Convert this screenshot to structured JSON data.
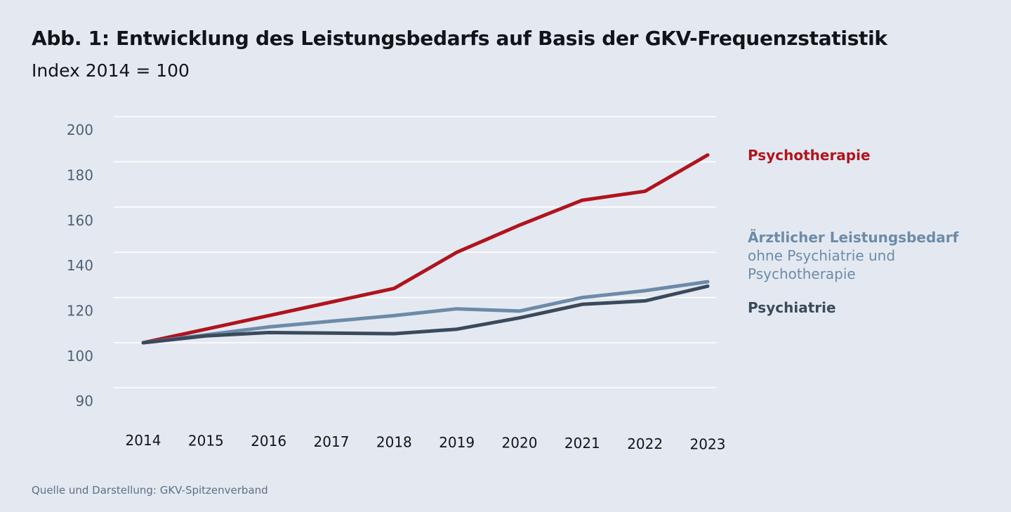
{
  "header": {
    "title": "Abb. 1: Entwicklung des Leistungsbedarfs auf Basis der GKV-Frequenzstatistik",
    "subtitle": "Index 2014 = 100"
  },
  "footer": {
    "source": "Quelle und Darstellung: GKV-Spitzenverband"
  },
  "chart_data": {
    "type": "line",
    "title": "Abb. 1: Entwicklung des Leistungsbedarfs auf Basis der GKV-Frequenzstatistik",
    "subtitle": "Index 2014 = 100",
    "xlabel": "",
    "ylabel": "",
    "x": [
      "2014",
      "2015",
      "2016",
      "2017",
      "2018",
      "2019",
      "2020",
      "2021",
      "2022",
      "2023"
    ],
    "yticks": [
      90,
      100,
      120,
      140,
      160,
      180,
      200
    ],
    "grid": true,
    "legend": "right",
    "series": [
      {
        "name": "Psychotherapie",
        "label_lines": [
          "Psychotherapie"
        ],
        "color": "#b0141e",
        "values": [
          100,
          106,
          112,
          118,
          124,
          140,
          152,
          163,
          167,
          183
        ]
      },
      {
        "name": "Ärztlicher Leistungsbedarf ohne Psychiatrie und Psychotherapie",
        "label_lines": [
          "Ärztlicher Leistungsbedarf",
          "ohne Psychiatrie und",
          "Psychotherapie"
        ],
        "color": "#6d8ba8",
        "values": [
          100,
          103.5,
          107,
          109.5,
          112,
          115,
          114,
          120,
          123,
          127
        ]
      },
      {
        "name": "Psychiatrie",
        "label_lines": [
          "Psychiatrie"
        ],
        "color": "#3a4a5c",
        "values": [
          100,
          103,
          104.5,
          104.3,
          104,
          106,
          111,
          117,
          118.5,
          125
        ]
      }
    ]
  }
}
